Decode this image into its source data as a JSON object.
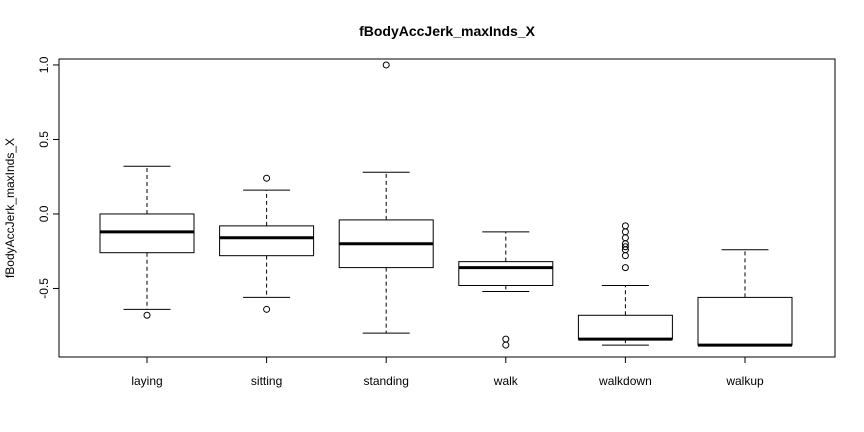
{
  "chart_data": {
    "type": "box",
    "title": "fBodyAccJerk_maxInds_X",
    "xlabel": "",
    "ylabel": "fBodyAccJerk_maxInds_X",
    "ylim": [
      -0.96,
      1.04
    ],
    "yticks": [
      1.0,
      0.5,
      0.0,
      -0.5
    ],
    "ytick_labels": [
      "1.0",
      "0.5",
      "0.0",
      "-0.5"
    ],
    "grid": false,
    "categories": [
      "laying",
      "sitting",
      "standing",
      "walk",
      "walkdown",
      "walkup"
    ],
    "boxes": [
      {
        "category": "laying",
        "whisker_low": -0.64,
        "q1": -0.26,
        "median": -0.12,
        "q3": 0.0,
        "whisker_high": 0.32,
        "outliers": [
          -0.68
        ]
      },
      {
        "category": "sitting",
        "whisker_low": -0.56,
        "q1": -0.28,
        "median": -0.16,
        "q3": -0.08,
        "whisker_high": 0.16,
        "outliers": [
          0.24,
          -0.64
        ]
      },
      {
        "category": "standing",
        "whisker_low": -0.8,
        "q1": -0.36,
        "median": -0.2,
        "q3": -0.04,
        "whisker_high": 0.28,
        "outliers": [
          1.0
        ]
      },
      {
        "category": "walk",
        "whisker_low": -0.52,
        "q1": -0.48,
        "median": -0.36,
        "q3": -0.32,
        "whisker_high": -0.12,
        "outliers": [
          -0.84,
          -0.88
        ]
      },
      {
        "category": "walkdown",
        "whisker_low": -0.88,
        "q1": -0.84,
        "median": -0.84,
        "q3": -0.68,
        "whisker_high": -0.48,
        "outliers": [
          -0.08,
          -0.12,
          -0.16,
          -0.2,
          -0.22,
          -0.24,
          -0.28,
          -0.36
        ]
      },
      {
        "category": "walkup",
        "whisker_low": -0.88,
        "q1": -0.88,
        "median": -0.88,
        "q3": -0.56,
        "whisker_high": -0.24,
        "outliers": []
      }
    ]
  }
}
